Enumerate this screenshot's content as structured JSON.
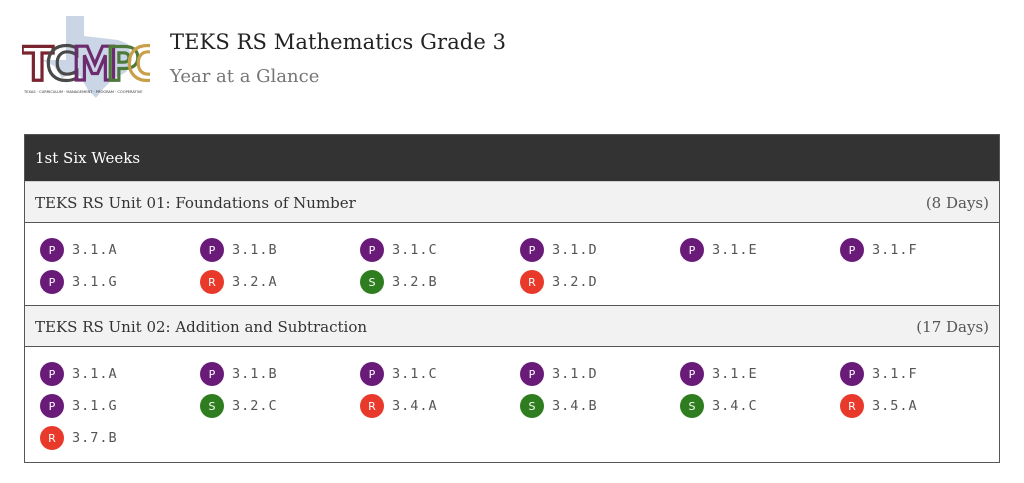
{
  "header": {
    "title": "TEKS RS Mathematics Grade 3",
    "subtitle": "Year at a Glance"
  },
  "logo": {
    "letters": [
      "T",
      "C",
      "M",
      "P",
      "C"
    ],
    "tagline": "TEXAS · CURRICULUM · MANAGEMENT · PROGRAM · COOPERATIVE",
    "colors": [
      "#7a2430",
      "#4a4a4a",
      "#6d2a6e",
      "#4d7a3a",
      "#c8a04a"
    ]
  },
  "colors": {
    "P": "#6a1b7a",
    "R": "#e8392a",
    "S": "#2e7d1e"
  },
  "six_weeks": {
    "label": "1st Six Weeks"
  },
  "units": [
    {
      "title": "TEKS RS Unit 01: Foundations of Number",
      "days": "(8 Days)",
      "standards": [
        {
          "type": "P",
          "code": "3.1.A"
        },
        {
          "type": "P",
          "code": "3.1.B"
        },
        {
          "type": "P",
          "code": "3.1.C"
        },
        {
          "type": "P",
          "code": "3.1.D"
        },
        {
          "type": "P",
          "code": "3.1.E"
        },
        {
          "type": "P",
          "code": "3.1.F"
        },
        {
          "type": "P",
          "code": "3.1.G"
        },
        {
          "type": "R",
          "code": "3.2.A"
        },
        {
          "type": "S",
          "code": "3.2.B"
        },
        {
          "type": "R",
          "code": "3.2.D"
        }
      ]
    },
    {
      "title": "TEKS RS Unit 02: Addition and Subtraction",
      "days": "(17 Days)",
      "standards": [
        {
          "type": "P",
          "code": "3.1.A"
        },
        {
          "type": "P",
          "code": "3.1.B"
        },
        {
          "type": "P",
          "code": "3.1.C"
        },
        {
          "type": "P",
          "code": "3.1.D"
        },
        {
          "type": "P",
          "code": "3.1.E"
        },
        {
          "type": "P",
          "code": "3.1.F"
        },
        {
          "type": "P",
          "code": "3.1.G"
        },
        {
          "type": "S",
          "code": "3.2.C"
        },
        {
          "type": "R",
          "code": "3.4.A"
        },
        {
          "type": "S",
          "code": "3.4.B"
        },
        {
          "type": "S",
          "code": "3.4.C"
        },
        {
          "type": "R",
          "code": "3.5.A"
        },
        {
          "type": "R",
          "code": "3.7.B"
        }
      ]
    }
  ]
}
